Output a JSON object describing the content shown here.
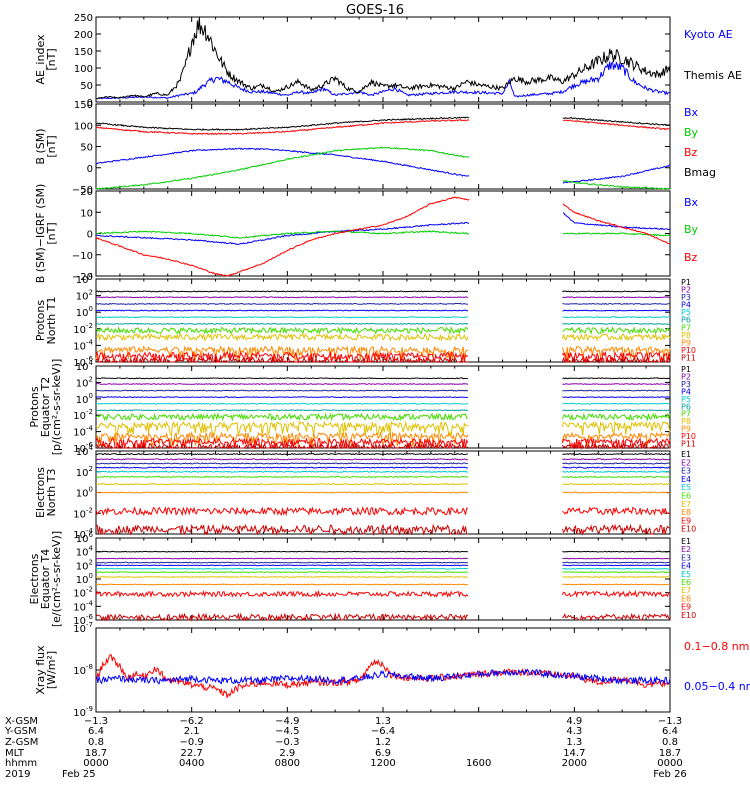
{
  "title": "GOES-16",
  "colors": {
    "black": "#000000",
    "blue": "#0000ff",
    "red": "#ff0000",
    "green": "#00cc00",
    "purple": "#8800aa",
    "navy": "#2020a0",
    "cyan": "#00cccc",
    "teal": "#00a0a0",
    "lime": "#44dd00",
    "orange": "#ff8800",
    "yellow": "#cccc00",
    "darkred": "#cc0000",
    "gold": "#e0c000"
  },
  "chart_data": [
    {
      "type": "line",
      "panel": "ae",
      "ylabel": "AE_index\n[nT]",
      "ylim": [
        0,
        250
      ],
      "yticks": [
        0,
        50,
        100,
        150,
        200,
        250
      ],
      "legend": [
        {
          "name": "Kyoto AE",
          "color": "#0000ff"
        },
        {
          "name": "Themis AE",
          "color": "#000000"
        }
      ],
      "series": [
        {
          "name": "Kyoto AE",
          "color": "#0000ff",
          "x": [
            0,
            1,
            2,
            3,
            3.5,
            4,
            4.2,
            4.5,
            5,
            5.5,
            6,
            6.5,
            7,
            7.5,
            8,
            8.5,
            9,
            9.5,
            10,
            10.5,
            11,
            11.5,
            12,
            12.5,
            13,
            14,
            15,
            16,
            17,
            17.3,
            17.5,
            18,
            19,
            19.5,
            20,
            20.5,
            21,
            21.5,
            22,
            22.5,
            23,
            23.5,
            24
          ],
          "y": [
            10,
            12,
            15,
            12,
            20,
            25,
            30,
            50,
            70,
            60,
            40,
            30,
            30,
            25,
            20,
            30,
            25,
            40,
            20,
            25,
            30,
            20,
            30,
            40,
            20,
            25,
            30,
            28,
            25,
            60,
            15,
            20,
            25,
            30,
            50,
            60,
            70,
            110,
            100,
            60,
            40,
            30,
            25
          ]
        },
        {
          "name": "Themis AE",
          "color": "#000000",
          "x": [
            0,
            0.5,
            1,
            1.5,
            2,
            2.5,
            3,
            3.5,
            3.8,
            4,
            4.3,
            4.6,
            5,
            5.3,
            5.6,
            6,
            6.5,
            7,
            7.5,
            8,
            8.5,
            9,
            9.5,
            10,
            10.5,
            11,
            11.5,
            12,
            12.5,
            13,
            13.5,
            14,
            14.5,
            15,
            15.5,
            16,
            16.5,
            17,
            17.5,
            18,
            18.5,
            19,
            19.5,
            20,
            20.5,
            21,
            21.5,
            22,
            22.5,
            23,
            23.5,
            24
          ],
          "y": [
            10,
            15,
            12,
            20,
            15,
            25,
            20,
            60,
            120,
            180,
            230,
            210,
            150,
            110,
            80,
            60,
            40,
            50,
            30,
            45,
            60,
            35,
            50,
            70,
            40,
            30,
            60,
            45,
            50,
            40,
            45,
            50,
            45,
            40,
            60,
            50,
            45,
            40,
            70,
            60,
            65,
            70,
            60,
            80,
            100,
            120,
            140,
            130,
            110,
            90,
            80,
            100
          ]
        }
      ]
    },
    {
      "type": "line",
      "panel": "b",
      "ylabel": "B (SM)\n[nT]",
      "ylim": [
        -50,
        150
      ],
      "yticks": [
        -50,
        0,
        50,
        100,
        150
      ],
      "legend": [
        {
          "name": "Bx",
          "color": "#0000ff"
        },
        {
          "name": "By",
          "color": "#00cc00"
        },
        {
          "name": "Bz",
          "color": "#ff0000"
        },
        {
          "name": "Bmag",
          "color": "#000000"
        }
      ],
      "gap": [
        15.6,
        19.5
      ],
      "series": [
        {
          "name": "Bx",
          "color": "#0000ff",
          "x": [
            0,
            2,
            4,
            5,
            6,
            7,
            8,
            10,
            12,
            14,
            15.5,
            19.5,
            20,
            22,
            24
          ],
          "y": [
            10,
            25,
            40,
            43,
            45,
            44,
            40,
            30,
            15,
            -5,
            -20,
            -35,
            -33,
            -20,
            5
          ]
        },
        {
          "name": "By",
          "color": "#00cc00",
          "x": [
            0,
            2,
            4,
            6,
            8,
            10,
            12,
            14,
            15.5,
            19.5,
            20,
            22,
            24
          ],
          "y": [
            -50,
            -40,
            -25,
            -5,
            20,
            40,
            48,
            40,
            25,
            -30,
            -35,
            -45,
            -50
          ]
        },
        {
          "name": "Bz",
          "color": "#ff0000",
          "x": [
            0,
            2,
            4,
            6,
            8,
            10,
            12,
            14,
            15.5,
            19.5,
            20,
            22,
            24
          ],
          "y": [
            95,
            85,
            80,
            80,
            85,
            95,
            105,
            110,
            112,
            112,
            110,
            100,
            90
          ]
        },
        {
          "name": "Bmag",
          "color": "#000000",
          "x": [
            0,
            2,
            4,
            6,
            8,
            10,
            12,
            14,
            15.5,
            19.5,
            20,
            22,
            24
          ],
          "y": [
            105,
            95,
            90,
            90,
            95,
            105,
            112,
            116,
            118,
            118,
            116,
            108,
            100
          ]
        }
      ]
    },
    {
      "type": "line",
      "panel": "db",
      "ylabel": "B (SM)−IGRF (SM)\n[nT]",
      "ylim": [
        -20,
        20
      ],
      "yticks": [
        -20,
        -10,
        0,
        10,
        20
      ],
      "legend": [
        {
          "name": "Bx",
          "color": "#0000ff"
        },
        {
          "name": "By",
          "color": "#00cc00"
        },
        {
          "name": "Bz",
          "color": "#ff0000"
        }
      ],
      "gap": [
        15.6,
        19.5
      ],
      "series": [
        {
          "name": "Bx",
          "color": "#0000ff",
          "x": [
            0,
            2,
            4,
            5,
            6,
            8,
            10,
            12,
            14,
            15.5,
            19.5,
            20,
            22,
            24
          ],
          "y": [
            -1,
            -2,
            -3,
            -4,
            -5,
            -1,
            1,
            2,
            4,
            5,
            10,
            5,
            3,
            2
          ]
        },
        {
          "name": "By",
          "color": "#00cc00",
          "x": [
            0,
            2,
            4,
            6,
            8,
            10,
            12,
            14,
            15.5,
            19.5,
            20,
            22,
            24
          ],
          "y": [
            0,
            1,
            0,
            -2,
            0,
            1,
            0,
            1,
            0,
            0,
            0,
            0,
            -1
          ]
        },
        {
          "name": "Bz",
          "color": "#ff0000",
          "x": [
            0,
            1,
            2,
            3,
            4,
            5,
            5.5,
            6,
            7,
            8,
            9,
            10,
            11,
            12,
            13,
            14,
            15,
            15.5,
            19.5,
            20,
            21,
            22,
            23,
            24
          ],
          "y": [
            -2,
            -6,
            -10,
            -12,
            -15,
            -19,
            -20,
            -18,
            -14,
            -8,
            -3,
            0,
            2,
            4,
            8,
            14,
            17,
            16,
            14,
            10,
            6,
            3,
            0,
            -5
          ]
        }
      ]
    },
    {
      "type": "line",
      "panel": "p1",
      "log": true,
      "ylabel": "Protons\nNorth T1",
      "ylim": [
        -6,
        4
      ],
      "ytick_exps": [
        -6,
        -4,
        -2,
        0,
        2,
        4
      ],
      "gap": [
        15.6,
        19.5
      ],
      "channels": [
        {
          "name": "P1",
          "color": "#000000",
          "level": 2.5
        },
        {
          "name": "P2",
          "color": "#8800aa",
          "level": 1.8
        },
        {
          "name": "P3",
          "color": "#2020a0",
          "level": 1.0
        },
        {
          "name": "P4",
          "color": "#0000ff",
          "level": 0.2
        },
        {
          "name": "P5",
          "color": "#00cccc",
          "level": -0.6
        },
        {
          "name": "P6",
          "color": "#00a0a0",
          "level": -1.4
        },
        {
          "name": "P7",
          "color": "#44dd00",
          "level": -2.2
        },
        {
          "name": "P8",
          "color": "#e0c000",
          "level": -3.0
        },
        {
          "name": "P9",
          "color": "#ff8800",
          "level": -4.5
        },
        {
          "name": "P10",
          "color": "#ff0000",
          "level": -5.2
        },
        {
          "name": "P11",
          "color": "#cc0000",
          "level": -5.8
        }
      ]
    },
    {
      "type": "line",
      "panel": "p2",
      "log": true,
      "ylabel": "Protons\nEquator T2\n[p/(cm²-s-sr-keV)]",
      "ylim": [
        -6,
        4
      ],
      "ytick_exps": [
        -6,
        -4,
        -2,
        0,
        2,
        4
      ],
      "gap": [
        15.6,
        19.5
      ],
      "channels": [
        {
          "name": "P1",
          "color": "#000000",
          "level": 2.5
        },
        {
          "name": "P2",
          "color": "#8800aa",
          "level": 1.8
        },
        {
          "name": "P3",
          "color": "#2020a0",
          "level": 1.0
        },
        {
          "name": "P4",
          "color": "#0000ff",
          "level": 0.2
        },
        {
          "name": "P5",
          "color": "#00cccc",
          "level": -0.6
        },
        {
          "name": "P6",
          "color": "#00a0a0",
          "level": -1.4
        },
        {
          "name": "P7",
          "color": "#44dd00",
          "level": -2.2
        },
        {
          "name": "P8",
          "color": "#e0c000",
          "level": -3.2
        },
        {
          "name": "P9",
          "color": "#ff8800",
          "level": -4.5
        },
        {
          "name": "P10",
          "color": "#ff0000",
          "level": -5.2
        },
        {
          "name": "P11",
          "color": "#cc0000",
          "level": -5.8
        }
      ]
    },
    {
      "type": "line",
      "panel": "e1",
      "log": true,
      "ylabel": "Electrons\nNorth T3",
      "ylim": [
        -4,
        4
      ],
      "ytick_exps": [
        -4,
        -2,
        0,
        2,
        4
      ],
      "gap": [
        15.6,
        19.5
      ],
      "channels": [
        {
          "name": "E1",
          "color": "#000000",
          "level": 3.7
        },
        {
          "name": "E2",
          "color": "#8800aa",
          "level": 3.2
        },
        {
          "name": "E3",
          "color": "#2020a0",
          "level": 2.8
        },
        {
          "name": "E4",
          "color": "#0000ff",
          "level": 2.4
        },
        {
          "name": "E5",
          "color": "#00cccc",
          "level": 2.0
        },
        {
          "name": "E6",
          "color": "#44dd00",
          "level": 1.5
        },
        {
          "name": "E7",
          "color": "#e0c000",
          "level": 0.8
        },
        {
          "name": "E8",
          "color": "#ff8800",
          "level": 0.0
        },
        {
          "name": "E9",
          "color": "#ff0000",
          "level": -1.8
        },
        {
          "name": "E10",
          "color": "#cc0000",
          "level": -3.5
        }
      ]
    },
    {
      "type": "line",
      "panel": "e2",
      "log": true,
      "ylabel": "Electrons\nEquator T4\n[e/(cm²-s-sr-keV)]",
      "ylim": [
        -6,
        6
      ],
      "ytick_exps": [
        -6,
        -4,
        -2,
        0,
        2,
        4,
        6
      ],
      "gap": [
        15.6,
        19.5
      ],
      "channels": [
        {
          "name": "E1",
          "color": "#000000",
          "level": 4.0
        },
        {
          "name": "E2",
          "color": "#8800aa",
          "level": 3.0
        },
        {
          "name": "E3",
          "color": "#2020a0",
          "level": 2.4
        },
        {
          "name": "E4",
          "color": "#0000ff",
          "level": 2.0
        },
        {
          "name": "E5",
          "color": "#00cccc",
          "level": 1.5
        },
        {
          "name": "E6",
          "color": "#44dd00",
          "level": 1.0
        },
        {
          "name": "E7",
          "color": "#e0c000",
          "level": 0.3
        },
        {
          "name": "E8",
          "color": "#ff8800",
          "level": -0.8
        },
        {
          "name": "E9",
          "color": "#ff0000",
          "level": -2.2
        },
        {
          "name": "E10",
          "color": "#cc0000",
          "level": -5.5
        }
      ]
    },
    {
      "type": "line",
      "panel": "xray",
      "log": true,
      "ylabel": "Xray flux\n[W/m²]",
      "ylim": [
        -9,
        -7
      ],
      "ytick_exps": [
        -9,
        -8,
        -7
      ],
      "legend": [
        {
          "name": "0.1−0.8 nm",
          "color": "#ff0000"
        },
        {
          "name": "0.05−0.4 nm",
          "color": "#0000ff"
        }
      ],
      "series": [
        {
          "name": "0.1−0.8 nm",
          "color": "#ff0000",
          "x": [
            0,
            0.3,
            0.6,
            1,
            1.3,
            1.6,
            2,
            2.5,
            2.9,
            3.2,
            3.6,
            4,
            5,
            5.5,
            6,
            7,
            8,
            9,
            10,
            11,
            11.6,
            12,
            12.3,
            12.7,
            13,
            14,
            15,
            16,
            17,
            18,
            19,
            20,
            21,
            22,
            23,
            24
          ],
          "y": [
            -8.25,
            -7.85,
            -7.7,
            -7.9,
            -8.2,
            -8.1,
            -8.15,
            -7.95,
            -8.2,
            -8.25,
            -8.3,
            -8.35,
            -8.45,
            -8.6,
            -8.4,
            -8.3,
            -8.35,
            -8.3,
            -8.3,
            -8.25,
            -7.8,
            -7.85,
            -8.1,
            -8.15,
            -8.2,
            -8.2,
            -8.15,
            -8.1,
            -8.05,
            -8.05,
            -8.1,
            -8.15,
            -8.3,
            -8.2,
            -8.35,
            -8.3
          ]
        },
        {
          "name": "0.05−0.4 nm",
          "color": "#0000ff",
          "x": [
            0,
            1,
            2,
            3,
            4,
            5,
            6,
            7,
            8,
            9,
            10,
            11,
            12,
            13,
            14,
            15,
            16,
            17,
            18,
            19,
            20,
            21,
            22,
            23,
            24
          ],
          "y": [
            -8.25,
            -8.2,
            -8.25,
            -8.25,
            -8.2,
            -8.25,
            -8.25,
            -8.25,
            -8.2,
            -8.2,
            -8.25,
            -8.2,
            -8.1,
            -8.15,
            -8.2,
            -8.15,
            -8.1,
            -8.05,
            -8.05,
            -8.1,
            -8.15,
            -8.2,
            -8.25,
            -8.25,
            -8.25
          ]
        }
      ]
    }
  ],
  "x_axis": {
    "xlim": [
      0,
      24
    ],
    "major_ticks_hours": [
      0,
      4,
      8,
      12,
      16,
      20,
      24
    ],
    "row_labels": [
      "X-GSM",
      "Y-GSM",
      "Z-GSM",
      "MLT",
      "hhmm",
      "2019"
    ],
    "columns": [
      {
        "hour": 0,
        "values": [
          "−1.3",
          "6.4",
          "0.8",
          "18.7",
          "0000",
          "Feb 25"
        ]
      },
      {
        "hour": 4,
        "values": [
          "−6.2",
          "2.1",
          "−0.9",
          "22.7",
          "0400",
          ""
        ]
      },
      {
        "hour": 8,
        "values": [
          "−4.9",
          "−4.5",
          "−0.3",
          "2.9",
          "0800",
          ""
        ]
      },
      {
        "hour": 12,
        "values": [
          "1.3",
          "−6.4",
          "1.2",
          "6.9",
          "1200",
          ""
        ]
      },
      {
        "hour": 16,
        "values": [
          "",
          "",
          "",
          "",
          "1600",
          ""
        ]
      },
      {
        "hour": 20,
        "values": [
          "4.9",
          "4.3",
          "1.3",
          "14.7",
          "2000",
          ""
        ]
      },
      {
        "hour": 24,
        "values": [
          "−1.3",
          "6.4",
          "0.8",
          "18.7",
          "0000",
          "Feb 26"
        ]
      }
    ]
  }
}
